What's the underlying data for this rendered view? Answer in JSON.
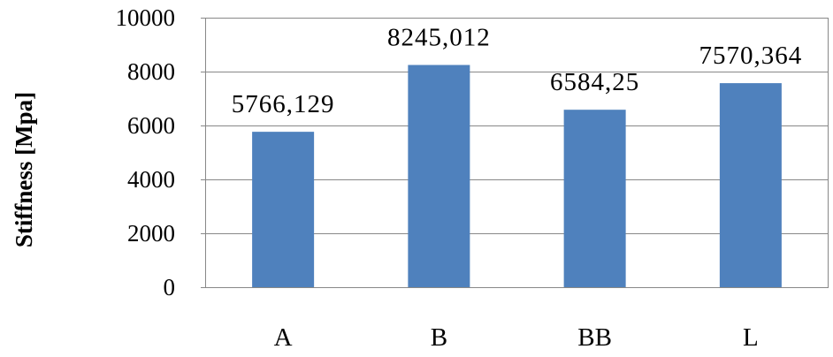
{
  "chart_data": {
    "type": "bar",
    "title": "",
    "xlabel": "",
    "ylabel": "Stiffness [Mpa]",
    "categories": [
      "A",
      "B",
      "BB",
      "L"
    ],
    "values": [
      5766.129,
      8245.012,
      6584.25,
      7570.364
    ],
    "data_labels": [
      "5766,129",
      "8245,012",
      "6584,25",
      "7570,364"
    ],
    "ylim": [
      0,
      10000
    ],
    "yticks": [
      0,
      2000,
      4000,
      6000,
      8000,
      10000
    ],
    "ytick_labels": [
      "0",
      "2000",
      "4000",
      "6000",
      "8000",
      "10000"
    ],
    "grid": true,
    "legend": "none",
    "colors": {
      "bar": "#4f81bd",
      "grid": "#888888",
      "axis": "#888888",
      "text": "#000000"
    }
  }
}
